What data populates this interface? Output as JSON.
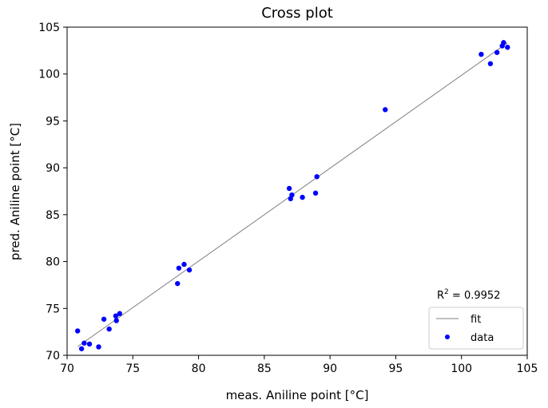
{
  "chart_data": {
    "type": "scatter",
    "title": "Cross plot",
    "xlabel": "meas. Aniline point [°C]",
    "ylabel": "pred. Aniline point [°C]",
    "xlim": [
      70,
      105
    ],
    "ylim": [
      70,
      105
    ],
    "xticks": [
      "70",
      "75",
      "80",
      "85",
      "90",
      "95",
      "100",
      "105"
    ],
    "yticks": [
      "70",
      "75",
      "80",
      "85",
      "90",
      "95",
      "100",
      "105"
    ],
    "grid": false,
    "legend": {
      "placement": "bottom-right",
      "entries": [
        "fit",
        "data"
      ]
    },
    "annotation": {
      "prefix": "R",
      "sup": "2",
      "text": " = 0.9952"
    },
    "colors": {
      "data": "#0000ff",
      "fit": "#808080"
    },
    "series": [
      {
        "name": "data",
        "type": "scatter",
        "x": [
          70.8,
          71.1,
          71.3,
          71.7,
          72.4,
          72.8,
          73.2,
          73.7,
          73.75,
          74.0,
          78.4,
          78.5,
          78.9,
          79.3,
          86.9,
          87.1,
          87.0,
          87.9,
          88.9,
          89.0,
          94.2,
          101.5,
          102.2,
          102.7,
          103.2,
          103.1,
          103.5
        ],
        "y": [
          72.6,
          70.7,
          71.3,
          71.2,
          70.9,
          73.85,
          72.8,
          74.2,
          73.7,
          74.45,
          77.65,
          79.3,
          79.7,
          79.1,
          87.8,
          87.1,
          86.7,
          86.85,
          87.3,
          89.05,
          96.2,
          102.1,
          101.1,
          102.3,
          103.35,
          103.0,
          102.85
        ]
      },
      {
        "name": "fit",
        "type": "line"
      }
    ]
  }
}
